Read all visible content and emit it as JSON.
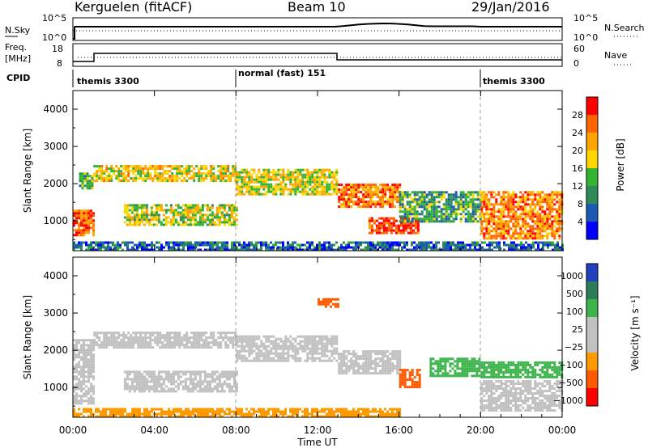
{
  "header": {
    "station": "Kerguelen (fitACF)",
    "beam": "Beam 10",
    "date": "29/Jan/2016"
  },
  "noise_panel": {
    "left_label": "N.Sky",
    "right_label": "N.Search",
    "left_ticks": [
      "10^5",
      "10^0"
    ],
    "right_ticks": [
      "10^5",
      "10^0"
    ]
  },
  "freq_panel": {
    "left_label_line1": "Freq.",
    "left_label_line2": "[MHz]",
    "right_label": "Nave",
    "left_ticks": [
      "18",
      "8"
    ],
    "right_ticks": [
      "60",
      "0"
    ]
  },
  "cpid": {
    "label": "CPID",
    "segments": [
      {
        "name": "themis 3300",
        "start_hour": 0
      },
      {
        "name": "normal (fast) 151",
        "start_hour": 8
      },
      {
        "name": "themis 3300",
        "start_hour": 20
      }
    ]
  },
  "colors": {
    "power": [
      "#0000ff",
      "#1a5ab4",
      "#2e8b57",
      "#32b432",
      "#ffd700",
      "#ffa500",
      "#ff6400",
      "#ff0000"
    ],
    "velocity": [
      "#2040c0",
      "#2e7d5a",
      "#3cb44b",
      "#c0c0c0",
      "#c0c0c0",
      "#ff9900",
      "#ff5a00",
      "#ff0000"
    ]
  },
  "chart_data": [
    {
      "type": "heatmap",
      "name": "power",
      "xlabel": "",
      "ylabel": "Slant Range [km]",
      "xlim": [
        0,
        24
      ],
      "ylim": [
        200,
        4500
      ],
      "yticks": [
        "1000",
        "2000",
        "3000",
        "4000"
      ],
      "colorbar": {
        "label": "Power [dB]",
        "ticks": [
          "28",
          "24",
          "20",
          "16",
          "12",
          "8",
          "4"
        ],
        "min": 0,
        "max": 32
      },
      "echo_regions": [
        {
          "t0": 0.0,
          "t1": 1.0,
          "r0": 600,
          "r1": 1300,
          "v": 26
        },
        {
          "t0": 0.3,
          "t1": 1.0,
          "r0": 1900,
          "r1": 2300,
          "v": 13
        },
        {
          "t0": 1.0,
          "t1": 8.0,
          "r0": 2100,
          "r1": 2500,
          "v": 19
        },
        {
          "t0": 2.5,
          "t1": 8.0,
          "r0": 900,
          "r1": 1450,
          "v": 17
        },
        {
          "t0": 8.0,
          "t1": 13.0,
          "r0": 1700,
          "r1": 2400,
          "v": 18
        },
        {
          "t0": 13.0,
          "t1": 16.0,
          "r0": 1400,
          "r1": 2000,
          "v": 25
        },
        {
          "t0": 14.5,
          "t1": 17.0,
          "r0": 700,
          "r1": 1100,
          "v": 29
        },
        {
          "t0": 16.0,
          "t1": 20.0,
          "r0": 1000,
          "r1": 1800,
          "v": 12
        },
        {
          "t0": 20.0,
          "t1": 24.0,
          "r0": 500,
          "r1": 1800,
          "v": 24
        },
        {
          "t0": 0.0,
          "t1": 24.0,
          "r0": 200,
          "r1": 450,
          "v": 7
        }
      ]
    },
    {
      "type": "heatmap",
      "name": "velocity",
      "xlabel": "Time UT",
      "ylabel": "Slant Range [km]",
      "xlim": [
        0,
        24
      ],
      "ylim": [
        200,
        4500
      ],
      "xticks": [
        "00:00",
        "04:00",
        "08:00",
        "12:00",
        "16:00",
        "20:00",
        "00:00"
      ],
      "yticks": [
        "1000",
        "2000",
        "3000",
        "4000"
      ],
      "colorbar": {
        "label": "Velocity [m s⁻¹]",
        "ticks": [
          "1000",
          "500",
          "100",
          "25",
          "−25",
          "−100",
          "−500",
          "−1000"
        ],
        "min": -1000,
        "max": 1000
      },
      "echo_regions": [
        {
          "t0": 0.0,
          "t1": 1.0,
          "r0": 600,
          "r1": 2300,
          "v": 0
        },
        {
          "t0": 1.0,
          "t1": 8.0,
          "r0": 2100,
          "r1": 2500,
          "v": 0
        },
        {
          "t0": 2.5,
          "t1": 8.0,
          "r0": 900,
          "r1": 1450,
          "v": 0
        },
        {
          "t0": 8.0,
          "t1": 13.0,
          "r0": 1700,
          "r1": 2400,
          "v": 0
        },
        {
          "t0": 13.0,
          "t1": 16.0,
          "r0": 1400,
          "r1": 2000,
          "v": 0
        },
        {
          "t0": 16.0,
          "t1": 17.0,
          "r0": 1000,
          "r1": 1500,
          "v": -300
        },
        {
          "t0": 17.5,
          "t1": 20.0,
          "r0": 1300,
          "r1": 1800,
          "v": 200
        },
        {
          "t0": 20.0,
          "t1": 24.0,
          "r0": 1300,
          "r1": 1700,
          "v": 150
        },
        {
          "t0": 20.0,
          "t1": 24.0,
          "r0": 400,
          "r1": 1200,
          "v": 0
        },
        {
          "t0": 12.0,
          "t1": 13.0,
          "r0": 3200,
          "r1": 3400,
          "v": -300
        },
        {
          "t0": 0.0,
          "t1": 16.0,
          "r0": 200,
          "r1": 450,
          "v": -60
        }
      ]
    }
  ]
}
